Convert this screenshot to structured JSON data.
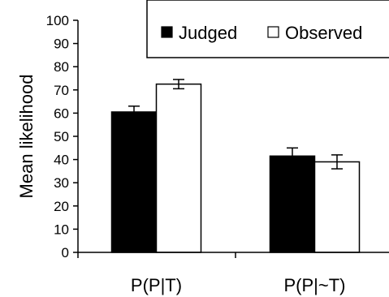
{
  "chart_data": {
    "type": "bar",
    "title": "",
    "xlabel": "",
    "ylabel": "Mean likelihood",
    "ylim": [
      0,
      100
    ],
    "yticks": [
      0,
      10,
      20,
      30,
      40,
      50,
      60,
      70,
      80,
      90,
      100
    ],
    "categories": [
      "P(P|T)",
      "P(P|~T)"
    ],
    "series": [
      {
        "name": "Judged",
        "values": [
          60.5,
          41.5
        ],
        "errors": [
          2.5,
          3.5
        ],
        "color": "#000000"
      },
      {
        "name": "Observed",
        "values": [
          72.5,
          39.0
        ],
        "errors": [
          2.0,
          3.0
        ],
        "color": "#ffffff"
      }
    ],
    "legend_position": "top-right",
    "grid": false
  }
}
